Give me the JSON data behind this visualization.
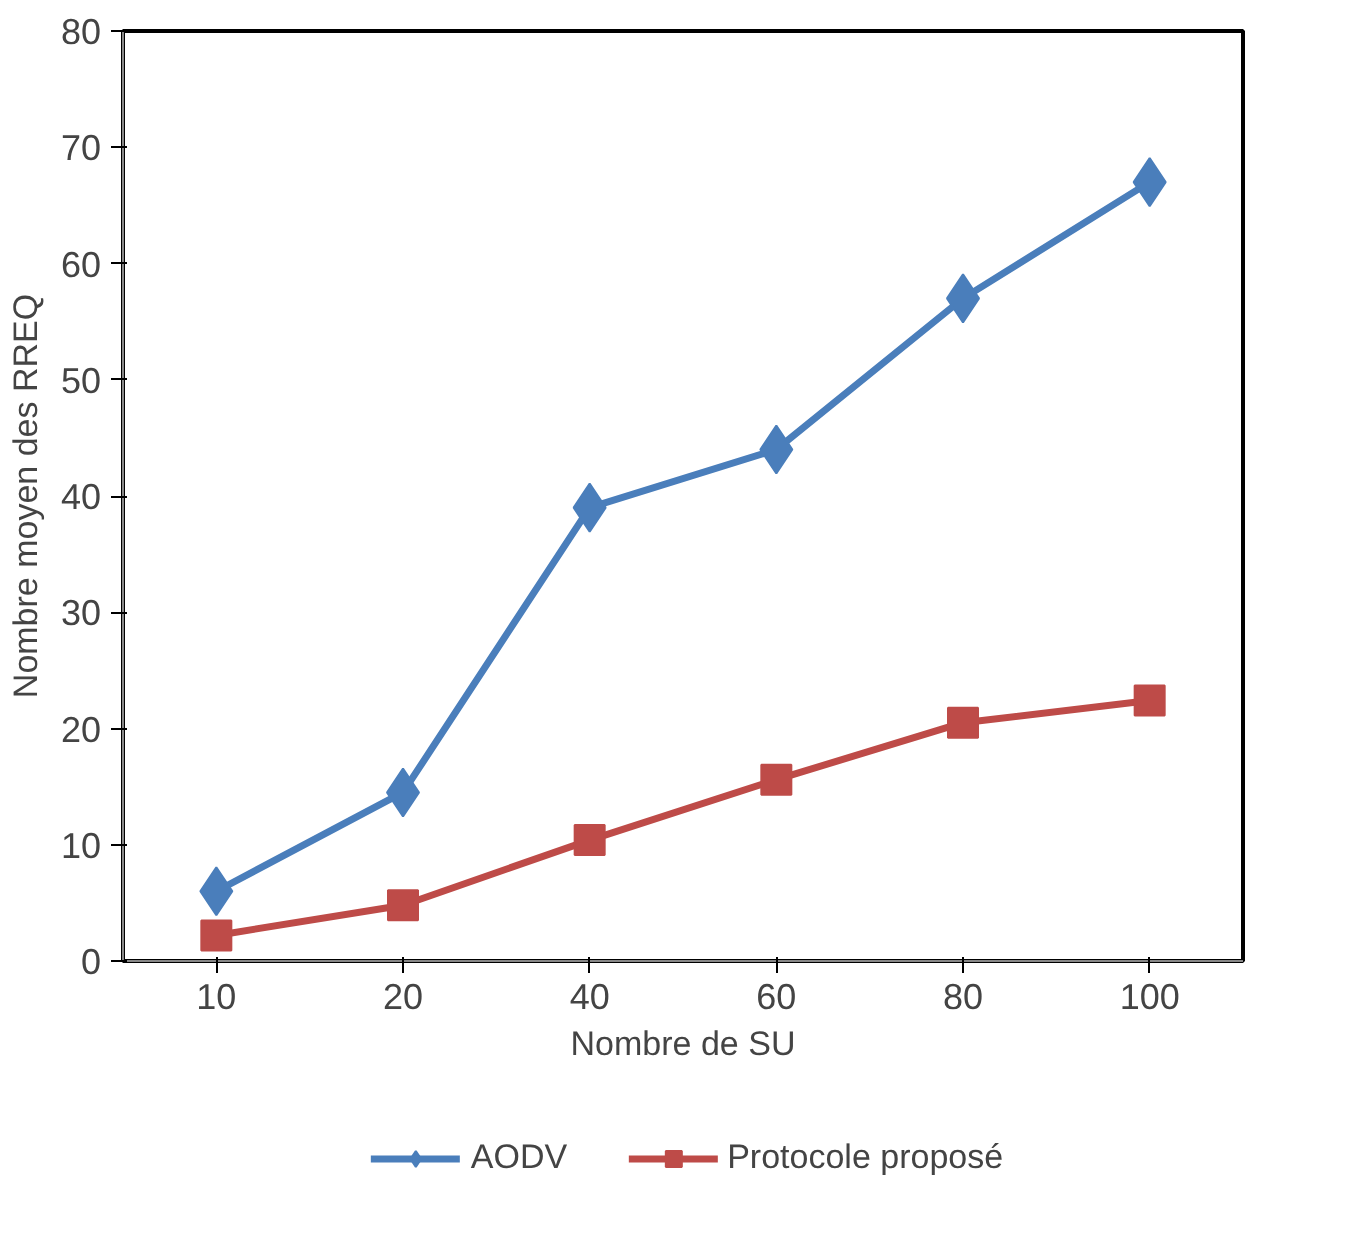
{
  "chart_data": {
    "type": "line",
    "xlabel": "Nombre de SU",
    "ylabel": "Nombre moyen des RREQ",
    "categories": [
      "10",
      "20",
      "40",
      "60",
      "80",
      "100"
    ],
    "ylim": [
      0,
      80
    ],
    "yticks": [
      0,
      10,
      20,
      30,
      40,
      50,
      60,
      70,
      80
    ],
    "grid": false,
    "legend": "bottom",
    "line_style": "solid",
    "series": [
      {
        "name": "AODV",
        "color": "#4a7ebb",
        "marker": "diamond",
        "values": [
          6,
          14.5,
          39,
          44,
          57,
          67
        ]
      },
      {
        "name": "Protocole proposé",
        "color": "#be4b48",
        "marker": "square",
        "values": [
          2.2,
          4.8,
          10.4,
          15.6,
          20.5,
          22.4
        ]
      }
    ]
  }
}
